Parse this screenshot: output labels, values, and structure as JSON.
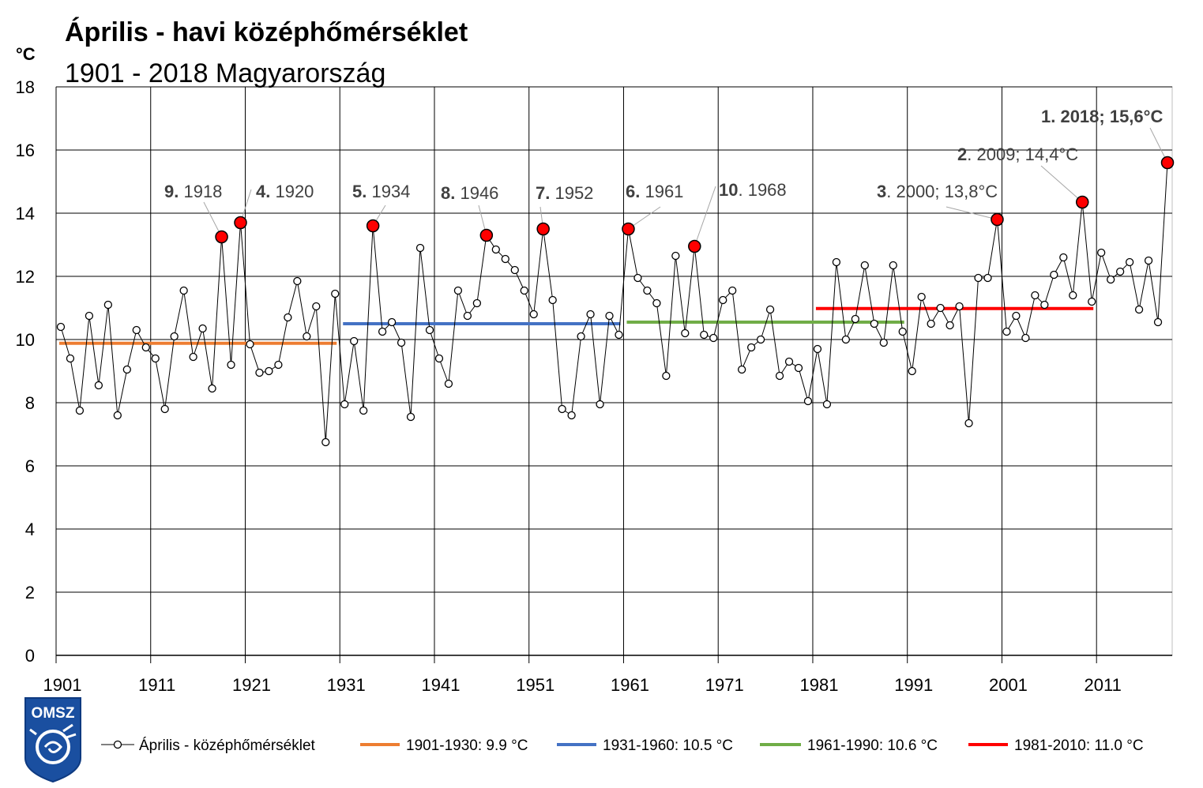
{
  "chart_data": {
    "type": "line",
    "title": "Április - havi középhőmérséklet",
    "subtitle": "1901 - 2018  Magyarország",
    "ylabel": "°C",
    "ylim": [
      0,
      18
    ],
    "yticks": [
      "0",
      "2",
      "4",
      "6",
      "8",
      "10",
      "12",
      "14",
      "16",
      "18"
    ],
    "xlim": [
      1900.5,
      2018.5
    ],
    "xticks": [
      "1901",
      "1911",
      "1921",
      "1931",
      "1941",
      "1951",
      "1961",
      "1971",
      "1981",
      "1991",
      "2001",
      "2011"
    ],
    "grid": true,
    "legend_position": "bottom",
    "series": [
      {
        "name": "Április - középhőmérséklet",
        "x": [
          1901,
          1902,
          1903,
          1904,
          1905,
          1906,
          1907,
          1908,
          1909,
          1910,
          1911,
          1912,
          1913,
          1914,
          1915,
          1916,
          1917,
          1918,
          1919,
          1920,
          1921,
          1922,
          1923,
          1924,
          1925,
          1926,
          1927,
          1928,
          1929,
          1930,
          1931,
          1932,
          1933,
          1934,
          1935,
          1936,
          1937,
          1938,
          1939,
          1940,
          1941,
          1942,
          1943,
          1944,
          1945,
          1946,
          1947,
          1948,
          1949,
          1950,
          1951,
          1952,
          1953,
          1954,
          1955,
          1956,
          1957,
          1958,
          1959,
          1960,
          1961,
          1962,
          1963,
          1964,
          1965,
          1966,
          1967,
          1968,
          1969,
          1970,
          1971,
          1972,
          1973,
          1974,
          1975,
          1976,
          1977,
          1978,
          1979,
          1980,
          1981,
          1982,
          1983,
          1984,
          1985,
          1986,
          1987,
          1988,
          1989,
          1990,
          1991,
          1992,
          1993,
          1994,
          1995,
          1996,
          1997,
          1998,
          1999,
          2000,
          2001,
          2002,
          2003,
          2004,
          2005,
          2006,
          2007,
          2008,
          2009,
          2010,
          2011,
          2012,
          2013,
          2014,
          2015,
          2016,
          2017,
          2018
        ],
        "values": [
          10.4,
          9.4,
          7.75,
          10.75,
          8.55,
          11.1,
          7.6,
          9.05,
          10.3,
          9.75,
          9.4,
          7.8,
          10.1,
          11.55,
          9.45,
          10.35,
          8.45,
          13.25,
          9.2,
          13.7,
          9.85,
          8.95,
          9.0,
          9.2,
          10.7,
          11.85,
          10.1,
          11.05,
          6.75,
          11.45,
          7.95,
          9.95,
          7.75,
          13.6,
          10.25,
          10.55,
          9.9,
          7.55,
          12.9,
          10.3,
          9.4,
          8.6,
          11.55,
          10.75,
          11.15,
          13.3,
          12.85,
          12.55,
          12.2,
          11.55,
          10.8,
          13.5,
          11.25,
          7.8,
          7.6,
          10.1,
          10.8,
          7.95,
          10.75,
          10.15,
          13.5,
          11.95,
          11.55,
          11.15,
          8.85,
          12.65,
          10.2,
          12.95,
          10.15,
          10.05,
          11.25,
          11.55,
          9.05,
          9.75,
          10.0,
          10.95,
          8.85,
          9.3,
          9.1,
          8.05,
          9.7,
          7.95,
          12.45,
          10.0,
          10.65,
          12.35,
          10.5,
          9.9,
          12.35,
          10.25,
          9.0,
          11.35,
          10.5,
          11.0,
          10.45,
          11.05,
          7.35,
          11.95,
          11.95,
          13.8,
          10.25,
          10.75,
          10.05,
          11.4,
          11.1,
          12.05,
          12.6,
          11.4,
          14.35,
          11.2,
          12.75,
          11.9,
          12.15,
          12.45,
          10.95,
          12.5,
          10.55,
          15.6
        ]
      },
      {
        "name": "1901-1930: 9.9 °C",
        "x": [
          1901,
          1930
        ],
        "values": [
          9.88,
          9.88
        ],
        "color": "#ed7d31"
      },
      {
        "name": "1931-1960: 10.5 °C",
        "x": [
          1931,
          1960
        ],
        "values": [
          10.5,
          10.5
        ],
        "color": "#4472c4"
      },
      {
        "name": "1961-1990: 10.6 °C",
        "x": [
          1961,
          1990
        ],
        "values": [
          10.55,
          10.55
        ],
        "color": "#70ad47"
      },
      {
        "name": "1981-2010: 11.0 °C",
        "x": [
          1981,
          2010
        ],
        "values": [
          10.98,
          10.98
        ],
        "color": "#ff0000"
      }
    ],
    "highlighted_points": [
      {
        "year": 1918,
        "value": 13.25,
        "rank": "9.",
        "label": " 1918"
      },
      {
        "year": 1920,
        "value": 13.7,
        "rank": "4.",
        "label": " 1920"
      },
      {
        "year": 1934,
        "value": 13.6,
        "rank": "5.",
        "label": " 1934"
      },
      {
        "year": 1946,
        "value": 13.3,
        "rank": "8.",
        "label": " 1946"
      },
      {
        "year": 1952,
        "value": 13.5,
        "rank": "7.",
        "label": " 1952"
      },
      {
        "year": 1961,
        "value": 13.5,
        "rank": "6.",
        "label": " 1961"
      },
      {
        "year": 1968,
        "value": 12.95,
        "rank": "10",
        "label": ". 1968"
      },
      {
        "year": 2000,
        "value": 13.8,
        "rank": "3",
        "label": ". 2000; 13,8°C"
      },
      {
        "year": 2009,
        "value": 14.35,
        "rank": "2",
        "label": ". 2009; 14,4°C"
      },
      {
        "year": 2018,
        "value": 15.6,
        "rank": "1. 2018; 15,6°C",
        "label": ""
      }
    ],
    "colors": {
      "main_line": "#000000",
      "marker_fill": "#ffffff",
      "highlight_fill": "#ff0000",
      "grid": "#000000",
      "annotation_text": "#404040",
      "logo_blue": "#1a4fa0"
    }
  },
  "logo": {
    "text": "OMSZ"
  }
}
